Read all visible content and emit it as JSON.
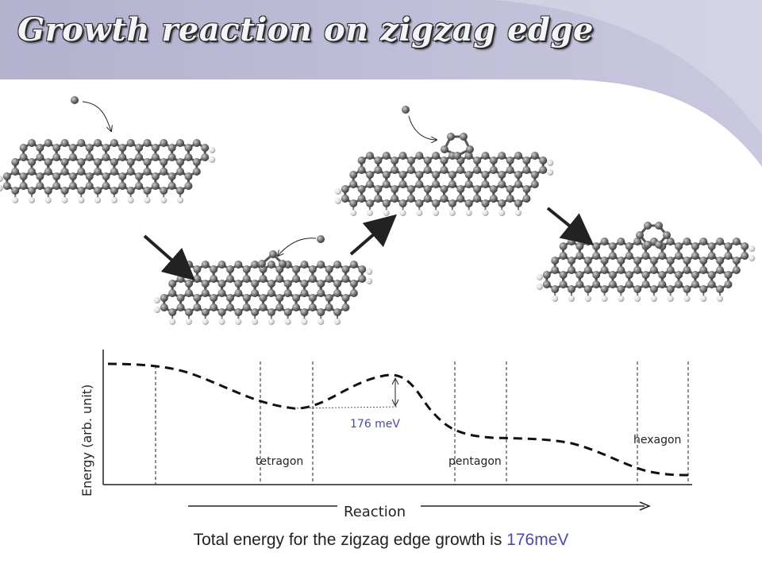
{
  "slide": {
    "title": "Growth reaction on zigzag edge",
    "caption_prefix": "Total energy for the zigzag edge growth is ",
    "caption_highlight": "176meV"
  },
  "profile": {
    "ylabel": "Energy (arb. unit)",
    "xlabel": "Reaction",
    "barrier_label": "176 meV",
    "state_labels": [
      "tetragon",
      "pentagon",
      "hexagon"
    ],
    "barrier_color": "#4a4ab0"
  },
  "colors": {
    "header_band": "#b7b6d3",
    "atom_carbon": "#6e6e6e",
    "atom_hydrogen": "#e6e6e6",
    "arrow": "#222222"
  }
}
